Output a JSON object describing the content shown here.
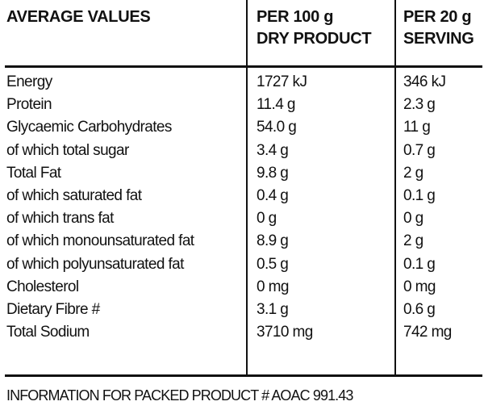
{
  "header": {
    "col1": "AVERAGE VALUES",
    "col2_line1": "PER 100 g",
    "col2_line2": "DRY PRODUCT",
    "col3_line1": "PER 20 g",
    "col3_line2": "SERVING"
  },
  "rows": [
    {
      "name": "Energy",
      "per100": "1727 kJ",
      "perServing": "346 kJ"
    },
    {
      "name": "Protein",
      "per100": "11.4 g",
      "perServing": "2.3 g"
    },
    {
      "name": "Glycaemic Carbohydrates",
      "per100": "54.0 g",
      "perServing": "11 g"
    },
    {
      "name": "of which total sugar",
      "per100": "3.4 g",
      "perServing": "0.7 g"
    },
    {
      "name": "Total Fat",
      "per100": "9.8 g",
      "perServing": "2 g"
    },
    {
      "name": "of which saturated fat",
      "per100": "0.4 g",
      "perServing": "0.1 g"
    },
    {
      "name": "of which trans fat",
      "per100": "0 g",
      "perServing": "0 g"
    },
    {
      "name": "of which monounsaturated fat",
      "per100": "8.9 g",
      "perServing": "2 g"
    },
    {
      "name": "of which polyunsaturated fat",
      "per100": "0.5 g",
      "perServing": "0.1 g"
    },
    {
      "name": "Cholesterol",
      "per100": "0 mg",
      "perServing": "0 mg"
    },
    {
      "name": "Dietary Fibre #",
      "per100": "3.1 g",
      "perServing": "0.6 g"
    },
    {
      "name": "Total Sodium",
      "per100": "3710 mg",
      "perServing": "742 mg"
    }
  ],
  "footer": "INFORMATION FOR PACKED PRODUCT  # AOAC 991.43"
}
